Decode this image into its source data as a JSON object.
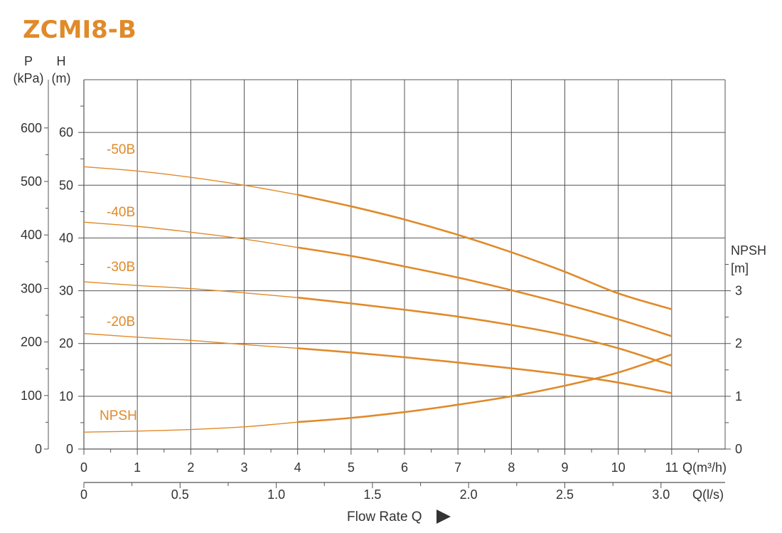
{
  "title": "ZCMI8-B",
  "colors": {
    "accent": "#e08a2a",
    "grid": "#555555",
    "text": "#333333"
  },
  "chart_data": {
    "type": "line",
    "title": "ZCMI8-B",
    "xlabel": "Flow Rate Q",
    "x_axis_primary": {
      "unit_label": "Q(m³/h)",
      "range": [
        0,
        12
      ],
      "ticks": [
        0,
        1,
        2,
        3,
        4,
        5,
        6,
        7,
        8,
        9,
        10,
        11
      ]
    },
    "x_axis_secondary": {
      "unit_label": "Q(l/s)",
      "ticks": [
        0,
        0.5,
        1.0,
        1.5,
        2.0,
        2.5,
        3.0
      ],
      "tick_labels": [
        "0",
        "0.5",
        "1.0",
        "1.5",
        "2.0",
        "2.5",
        "3.0"
      ]
    },
    "y_axis_pressure": {
      "label_top": "P",
      "label_unit": "(kPa)",
      "ticks": [
        0,
        100,
        200,
        300,
        400,
        500,
        600
      ]
    },
    "y_axis_head": {
      "label_top": "H",
      "label_unit": "(m)",
      "range": [
        0,
        70
      ],
      "ticks": [
        0,
        10,
        20,
        30,
        40,
        50,
        60
      ]
    },
    "y_axis_npsh": {
      "label_top": "NPSH",
      "label_unit": "[m]",
      "ticks": [
        0,
        1,
        2,
        3
      ]
    },
    "grid": true,
    "series": [
      {
        "name": "-50B",
        "axis": "head",
        "x": [
          0,
          1,
          2,
          3,
          4,
          5,
          6,
          7,
          8,
          9,
          10,
          11
        ],
        "y": [
          53.5,
          52.7,
          51.5,
          50.0,
          48.2,
          46.0,
          43.5,
          40.6,
          37.3,
          33.6,
          29.5,
          26.5
        ]
      },
      {
        "name": "-40B",
        "axis": "head",
        "x": [
          0,
          1,
          2,
          3,
          4,
          5,
          6,
          7,
          8,
          9,
          10,
          11
        ],
        "y": [
          43.0,
          42.2,
          41.1,
          39.8,
          38.2,
          36.6,
          34.6,
          32.5,
          30.1,
          27.5,
          24.6,
          21.4
        ]
      },
      {
        "name": "-30B",
        "axis": "head",
        "x": [
          0,
          1,
          2,
          3,
          4,
          5,
          6,
          7,
          8,
          9,
          10,
          11
        ],
        "y": [
          31.7,
          31.0,
          30.4,
          29.6,
          28.7,
          27.6,
          26.4,
          25.1,
          23.5,
          21.6,
          19.1,
          15.8
        ]
      },
      {
        "name": "-20B",
        "axis": "head",
        "x": [
          0,
          1,
          2,
          3,
          4,
          5,
          6,
          7,
          8,
          9,
          10,
          11
        ],
        "y": [
          21.9,
          21.2,
          20.6,
          19.8,
          19.1,
          18.3,
          17.4,
          16.4,
          15.3,
          14.1,
          12.6,
          10.6
        ]
      },
      {
        "name": "NPSH",
        "axis": "npsh",
        "x": [
          0,
          1,
          2,
          3,
          4,
          5,
          6,
          7,
          8,
          9,
          10,
          11
        ],
        "y": [
          0.32,
          0.34,
          0.37,
          0.42,
          0.51,
          0.59,
          0.7,
          0.84,
          1.0,
          1.2,
          1.45,
          1.79
        ]
      }
    ]
  }
}
